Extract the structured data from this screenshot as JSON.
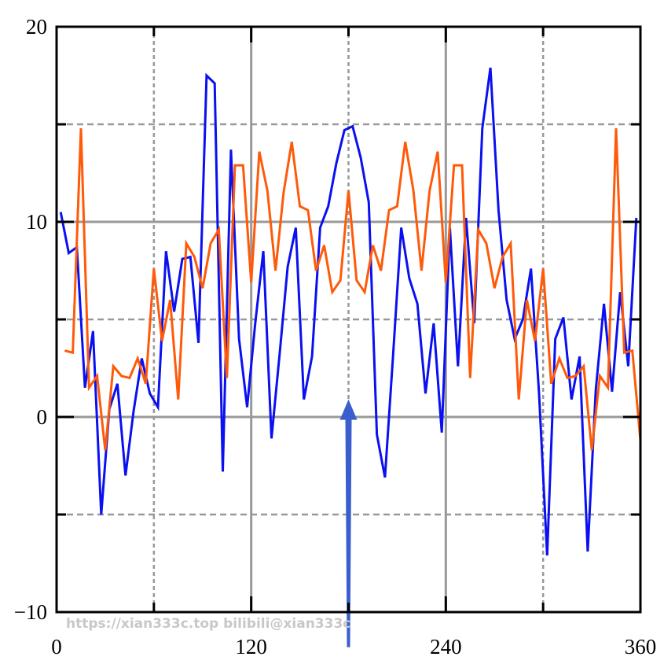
{
  "chart_data": {
    "type": "line",
    "title": "",
    "xlabel": "",
    "ylabel": "",
    "xlim": [
      0,
      360
    ],
    "ylim": [
      -10,
      20
    ],
    "grid": true,
    "x_major_ticks": [
      0,
      120,
      240,
      360
    ],
    "x_minor_grid": [
      60,
      180,
      300
    ],
    "y_major_ticks": [
      -10,
      0,
      10,
      20
    ],
    "y_minor_grid": [
      -5,
      5,
      15
    ],
    "x_tick_labels": [
      "0",
      "120",
      "240",
      "360"
    ],
    "y_tick_labels": [
      "−10",
      "0",
      "10",
      "20"
    ],
    "series": [
      {
        "name": "blue",
        "color": "#0a10f0",
        "x_start": 2.5,
        "x_step": 5,
        "values": [
          10.5,
          8.4,
          8.7,
          1.5,
          4.4,
          -5.0,
          0.4,
          1.7,
          -3.0,
          0.3,
          3.0,
          1.2,
          0.5,
          8.5,
          5.4,
          8.1,
          8.2,
          3.8,
          17.5,
          17.1,
          -2.8,
          13.7,
          4.0,
          0.5,
          4.8,
          8.5,
          -1.1,
          3.2,
          7.7,
          9.7,
          0.9,
          3.1,
          9.7,
          10.8,
          13.0,
          14.7,
          14.9,
          13.3,
          11.0,
          -0.9,
          -3.1,
          3.2,
          9.7,
          7.1,
          5.8,
          1.2,
          4.8,
          -0.8,
          9.7,
          2.6,
          10.2,
          4.8,
          14.8,
          17.9,
          10.6,
          6.0,
          4.0,
          5.0,
          7.6,
          1.2,
          -7.1,
          4.0,
          5.1,
          0.9,
          3.1,
          -6.9,
          1.4,
          5.8,
          1.3,
          6.4,
          2.6,
          10.2
        ]
      },
      {
        "name": "orange",
        "color": "#ff5a0a",
        "x_start": 5,
        "x_step": 5,
        "values": [
          3.4,
          3.3,
          14.8,
          1.5,
          2.1,
          -1.7,
          2.6,
          2.1,
          2.0,
          3.0,
          1.7,
          7.6,
          3.9,
          6.0,
          0.9,
          8.9,
          8.2,
          6.6,
          8.9,
          9.6,
          2.0,
          12.9,
          12.9,
          6.9,
          13.6,
          11.6,
          7.5,
          11.5,
          14.1,
          10.8,
          10.6,
          7.5,
          8.8,
          6.4,
          7.0,
          11.6,
          7.0,
          6.4,
          8.8,
          7.5,
          10.6,
          10.8,
          14.1,
          11.6,
          7.5,
          11.6,
          13.6,
          6.9,
          12.9,
          12.9,
          2.0,
          9.6,
          8.9,
          6.6,
          8.2,
          8.9,
          0.9,
          6.0,
          3.9,
          7.6,
          1.7,
          3.0,
          2.0,
          2.1,
          2.6,
          -1.7,
          2.1,
          1.5,
          14.8,
          3.3,
          3.4,
          -1.2
        ]
      }
    ],
    "annotations": [
      {
        "type": "arrow",
        "x": 180,
        "y_from": -11.8,
        "y_to": 0.9,
        "color": "#3a5fcd"
      }
    ]
  },
  "watermark": "https://xian333c.top bilibili@xian333c"
}
